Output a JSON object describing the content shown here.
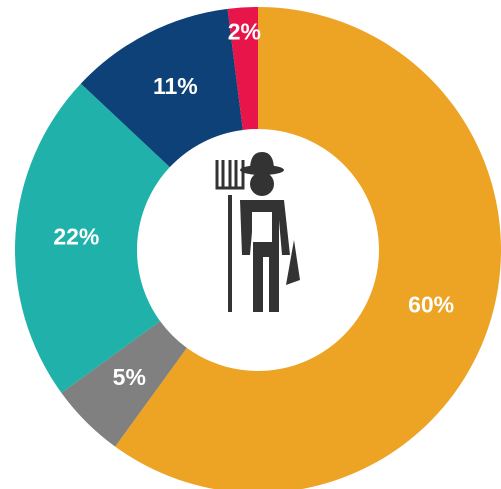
{
  "chart_data": {
    "type": "donut",
    "values": [
      60,
      5,
      22,
      11,
      2
    ],
    "value_labels": [
      "60%",
      "5%",
      "22%",
      "11%",
      "2%"
    ],
    "colors": [
      "#eda323",
      "#808080",
      "#20b2aa",
      "#0d4177",
      "#e8154a"
    ]
  }
}
